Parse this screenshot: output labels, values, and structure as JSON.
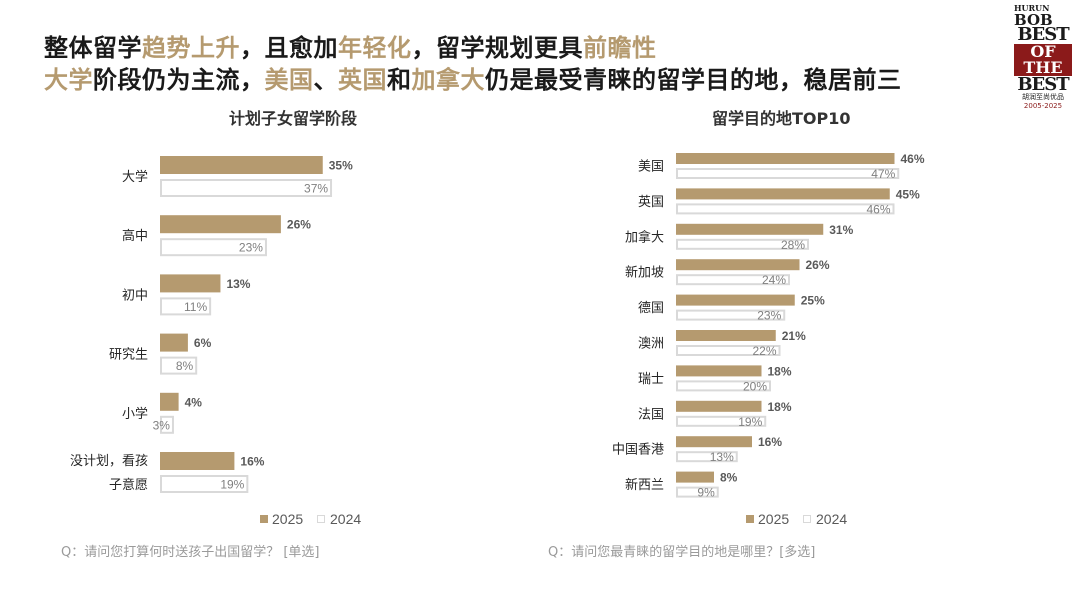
{
  "headline": {
    "line1": [
      {
        "text": "整体留学",
        "hl": false
      },
      {
        "text": "趋势上升",
        "hl": true
      },
      {
        "text": "，且愈加",
        "hl": false
      },
      {
        "text": "年轻化",
        "hl": true
      },
      {
        "text": "，留学规划更具",
        "hl": false
      },
      {
        "text": "前瞻性",
        "hl": true
      }
    ],
    "line2": [
      {
        "text": "大学",
        "hl": true
      },
      {
        "text": "阶段仍为主流，",
        "hl": false
      },
      {
        "text": "美国",
        "hl": true
      },
      {
        "text": "、",
        "hl": false
      },
      {
        "text": "英国",
        "hl": true
      },
      {
        "text": "和",
        "hl": false
      },
      {
        "text": "加拿大",
        "hl": true
      },
      {
        "text": "仍是最受青睐的留学目的地，稳居前三",
        "hl": false
      }
    ]
  },
  "logo": {
    "line1": "HURUN",
    "line2": "BOB",
    "line3": "BEST",
    "line4": "OF THE",
    "line5": "BEST",
    "line6": "胡润至尚优品",
    "line7": "2005-2025"
  },
  "colors": {
    "accent": "#B59A6F",
    "outline": "#d9d9d9",
    "text": "#1a1a1a",
    "muted": "#9a9a9a"
  },
  "chart_data": [
    {
      "type": "bar",
      "title": "计划子女留学阶段",
      "categories": [
        [
          "大学"
        ],
        [
          "高中"
        ],
        [
          "初中"
        ],
        [
          "研究生"
        ],
        [
          "小学"
        ],
        [
          "没计划，看孩",
          "子意愿"
        ]
      ],
      "series": [
        {
          "name": "2025",
          "values": [
            35,
            26,
            13,
            6,
            4,
            16
          ],
          "labels": [
            "35%",
            "26%",
            "13%",
            "6%",
            "4%",
            "16%"
          ]
        },
        {
          "name": "2024",
          "values": [
            37,
            23,
            11,
            8,
            3,
            19
          ],
          "labels": [
            "37%",
            "23%",
            "11%",
            "8%",
            "3%",
            "19%"
          ]
        }
      ],
      "legend": "bottom",
      "footnote": "Q：请问您打算何时送孩子出国留学？ [单选]"
    },
    {
      "type": "bar",
      "title": "留学目的地TOP10",
      "categories": [
        [
          "美国"
        ],
        [
          "英国"
        ],
        [
          "加拿大"
        ],
        [
          "新加坡"
        ],
        [
          "德国"
        ],
        [
          "澳洲"
        ],
        [
          "瑞士"
        ],
        [
          "法国"
        ],
        [
          "中国香港"
        ],
        [
          "新西兰"
        ]
      ],
      "series": [
        {
          "name": "2025",
          "values": [
            46,
            45,
            31,
            26,
            25,
            21,
            18,
            18,
            16,
            8
          ],
          "labels": [
            "46%",
            "45%",
            "31%",
            "26%",
            "25%",
            "21%",
            "18%",
            "18%",
            "16%",
            "8%"
          ]
        },
        {
          "name": "2024",
          "values": [
            47,
            46,
            28,
            24,
            23,
            22,
            20,
            19,
            13,
            9
          ],
          "labels": [
            "47%",
            "46%",
            "28%",
            "24%",
            "23%",
            "22%",
            "20%",
            "19%",
            "13%",
            "9%"
          ]
        }
      ],
      "legend": "bottom",
      "footnote": "Q：请问您最青睐的留学目的地是哪里？[多选]"
    }
  ]
}
